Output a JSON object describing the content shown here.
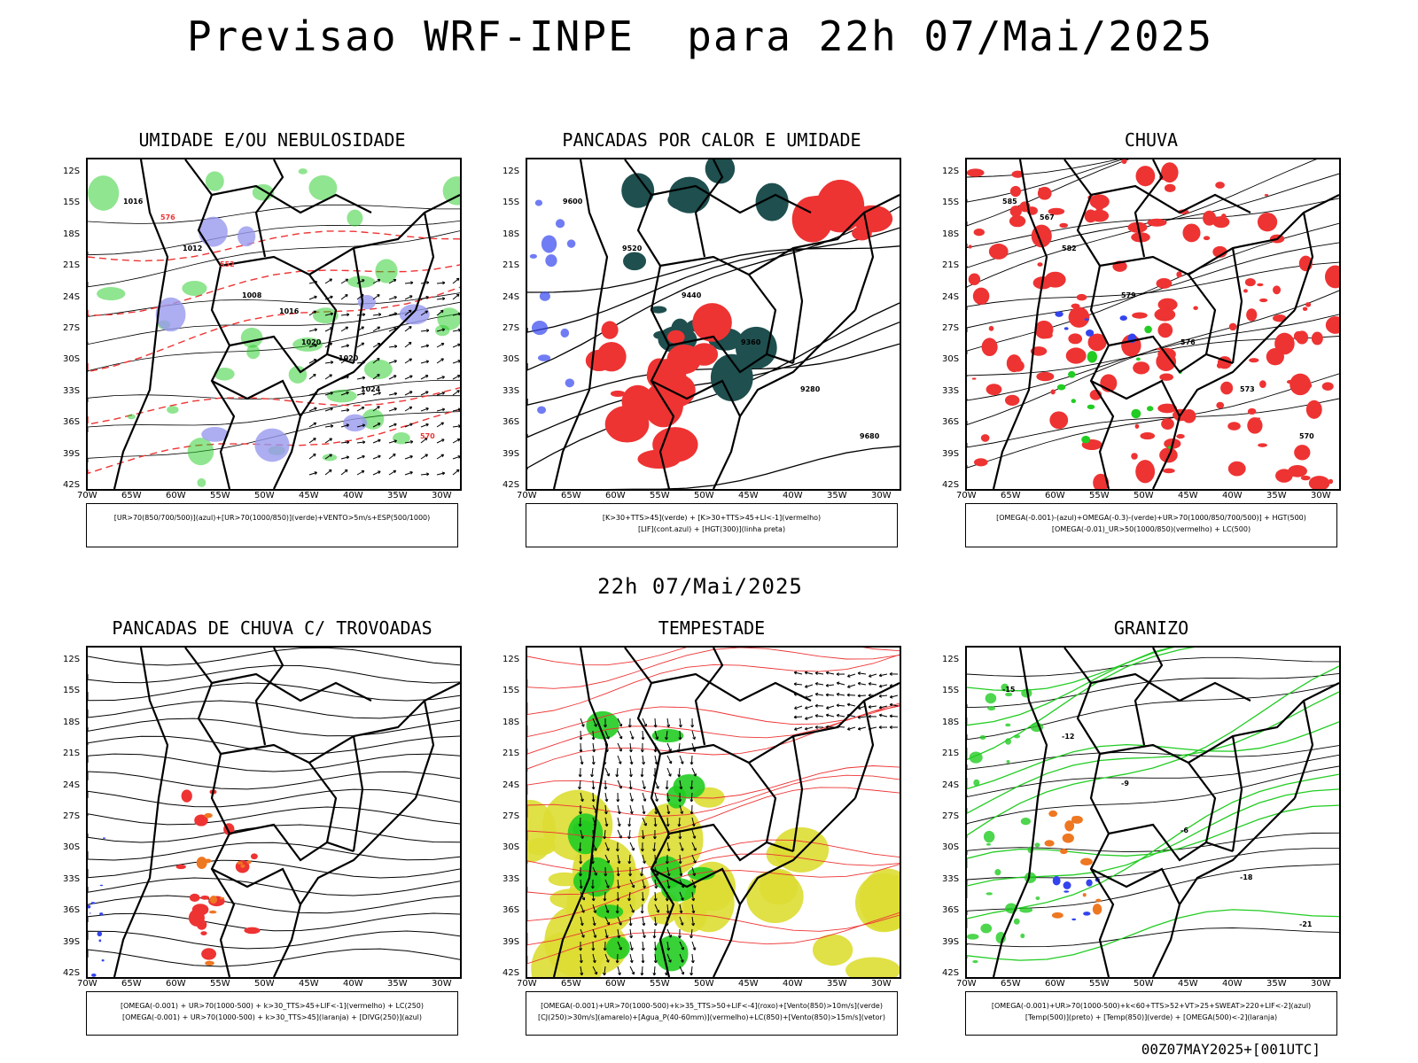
{
  "page": {
    "title": "Previsao WRF-INPE  para 22h 07/Mai/2025",
    "subtitle": "22h 07/Mai/2025",
    "footer": "00Z07MAY2025+[001UTC]"
  },
  "axes": {
    "lat_labels": [
      "12S",
      "15S",
      "18S",
      "21S",
      "24S",
      "27S",
      "30S",
      "33S",
      "36S",
      "39S",
      "42S"
    ],
    "lon_labels": [
      "70W",
      "65W",
      "60W",
      "55W",
      "50W",
      "45W",
      "40W",
      "35W",
      "30W"
    ]
  },
  "panels": [
    {
      "title": "UMIDADE E/OU NEBULOSIDADE",
      "legend": [
        "[UR>70(850/700/500)](azul)+[UR>70(1000/850)](verde)+VENTO>5m/s+ESP(500/1000)"
      ],
      "contour_labels": [
        "1016",
        "1012",
        "1008",
        "1020",
        "1024",
        "570",
        "576",
        "552",
        "1016",
        "1020"
      ]
    },
    {
      "title": "PANCADAS POR CALOR E UMIDADE",
      "legend": [
        "[K>30+TTS>45](verde) + [K>30+TTS>45+LI<-1](vermelho)",
        "[LIF](cont.azul) + [HGT(300)](linha preta)"
      ],
      "contour_labels": [
        "9600",
        "9520",
        "9440",
        "9360",
        "9280",
        "9680"
      ]
    },
    {
      "title": "CHUVA",
      "legend": [
        "[OMEGA(-0.001)-(azul)+OMEGA(-0.3)-(verde)+UR>70(1000/850/700/500)] + HGT(500)",
        "[OMEGA(-0.01)_UR>50(1000/850)(vermelho) + LC(500)"
      ],
      "contour_labels": [
        "585",
        "582",
        "579",
        "576",
        "573",
        "570",
        "567"
      ]
    },
    {
      "title": "PANCADAS DE CHUVA C/ TROVOADAS",
      "legend": [
        "[OMEGA(-0.001) + UR>70(1000-500) + k>30_TTS>45+LIF<-1](vermelho) + LC(250)",
        "[OMEGA(-0.001) + UR>70(1000-500) + k>30_TTS>45](laranja) + [DIVG(250)](azul)"
      ],
      "contour_labels": []
    },
    {
      "title": "TEMPESTADE",
      "legend": [
        "[OMEGA(-0.001)+UR>70(1000-500)+k>35_TTS>50+LIF<-4](roxo)+[Vento(850)>10m/s](verde)",
        "[CJ(250)>30m/s](amarelo)+[Agua_P(40-60mm)](vermelho)+LC(850)+[Vento(850)>15m/s](vetor)"
      ],
      "contour_labels": []
    },
    {
      "title": "GRANIZO",
      "legend": [
        "[OMEGA(-0.001)+UR>70(1000-500)+k<60+TTS>52+VT>25+SWEAT>220+LIF<-2](azul)",
        "[Temp(500)](preto) + [Temp(850)](verde) + [OMEGA(500)<-2](laranja)"
      ],
      "contour_labels": [
        "-15",
        "-12",
        "-9",
        "-6",
        "-18",
        "-21"
      ]
    }
  ],
  "colors": {
    "green": "#22cc22",
    "red": "#ee3333",
    "blue": "#3344ee",
    "lavender": "#9999ee",
    "darkteal": "#1f4f4f",
    "yellow": "#dddd33",
    "orange": "#ee7722"
  }
}
